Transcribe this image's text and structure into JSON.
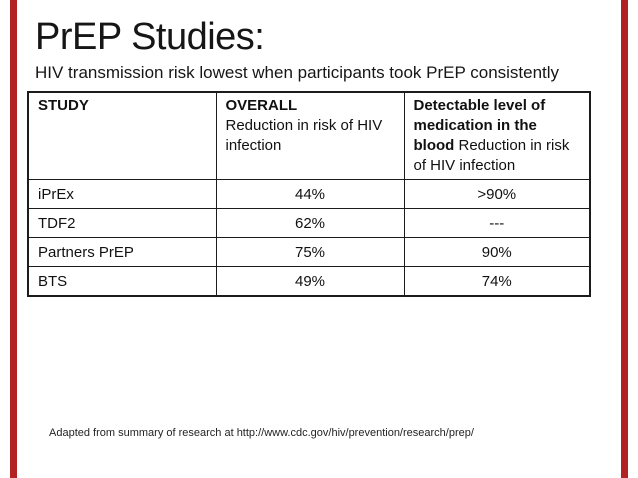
{
  "slide": {
    "title": "PrEP Studies:",
    "subtitle": "HIV transmission risk lowest when participants took PrEP consistently",
    "footer": "Adapted from summary of research at http://www.cdc.gov/hiv/prevention/research/prep/",
    "accent_color": "#b22222",
    "background_color": "#ffffff"
  },
  "table": {
    "columns": [
      {
        "title": "STUDY",
        "subtitle": ""
      },
      {
        "title": "OVERALL",
        "subtitle": "Reduction in risk of HIV infection"
      },
      {
        "title": "Detectable level of medication in the blood",
        "subtitle": "Reduction in risk of HIV infection"
      }
    ],
    "rows": [
      {
        "study": "iPrEx",
        "overall": "44%",
        "detectable": ">90%"
      },
      {
        "study": "TDF2",
        "overall": "62%",
        "detectable": "---"
      },
      {
        "study": "Partners PrEP",
        "overall": "75%",
        "detectable": "90%"
      },
      {
        "study": "BTS",
        "overall": "49%",
        "detectable": "74%"
      }
    ]
  }
}
